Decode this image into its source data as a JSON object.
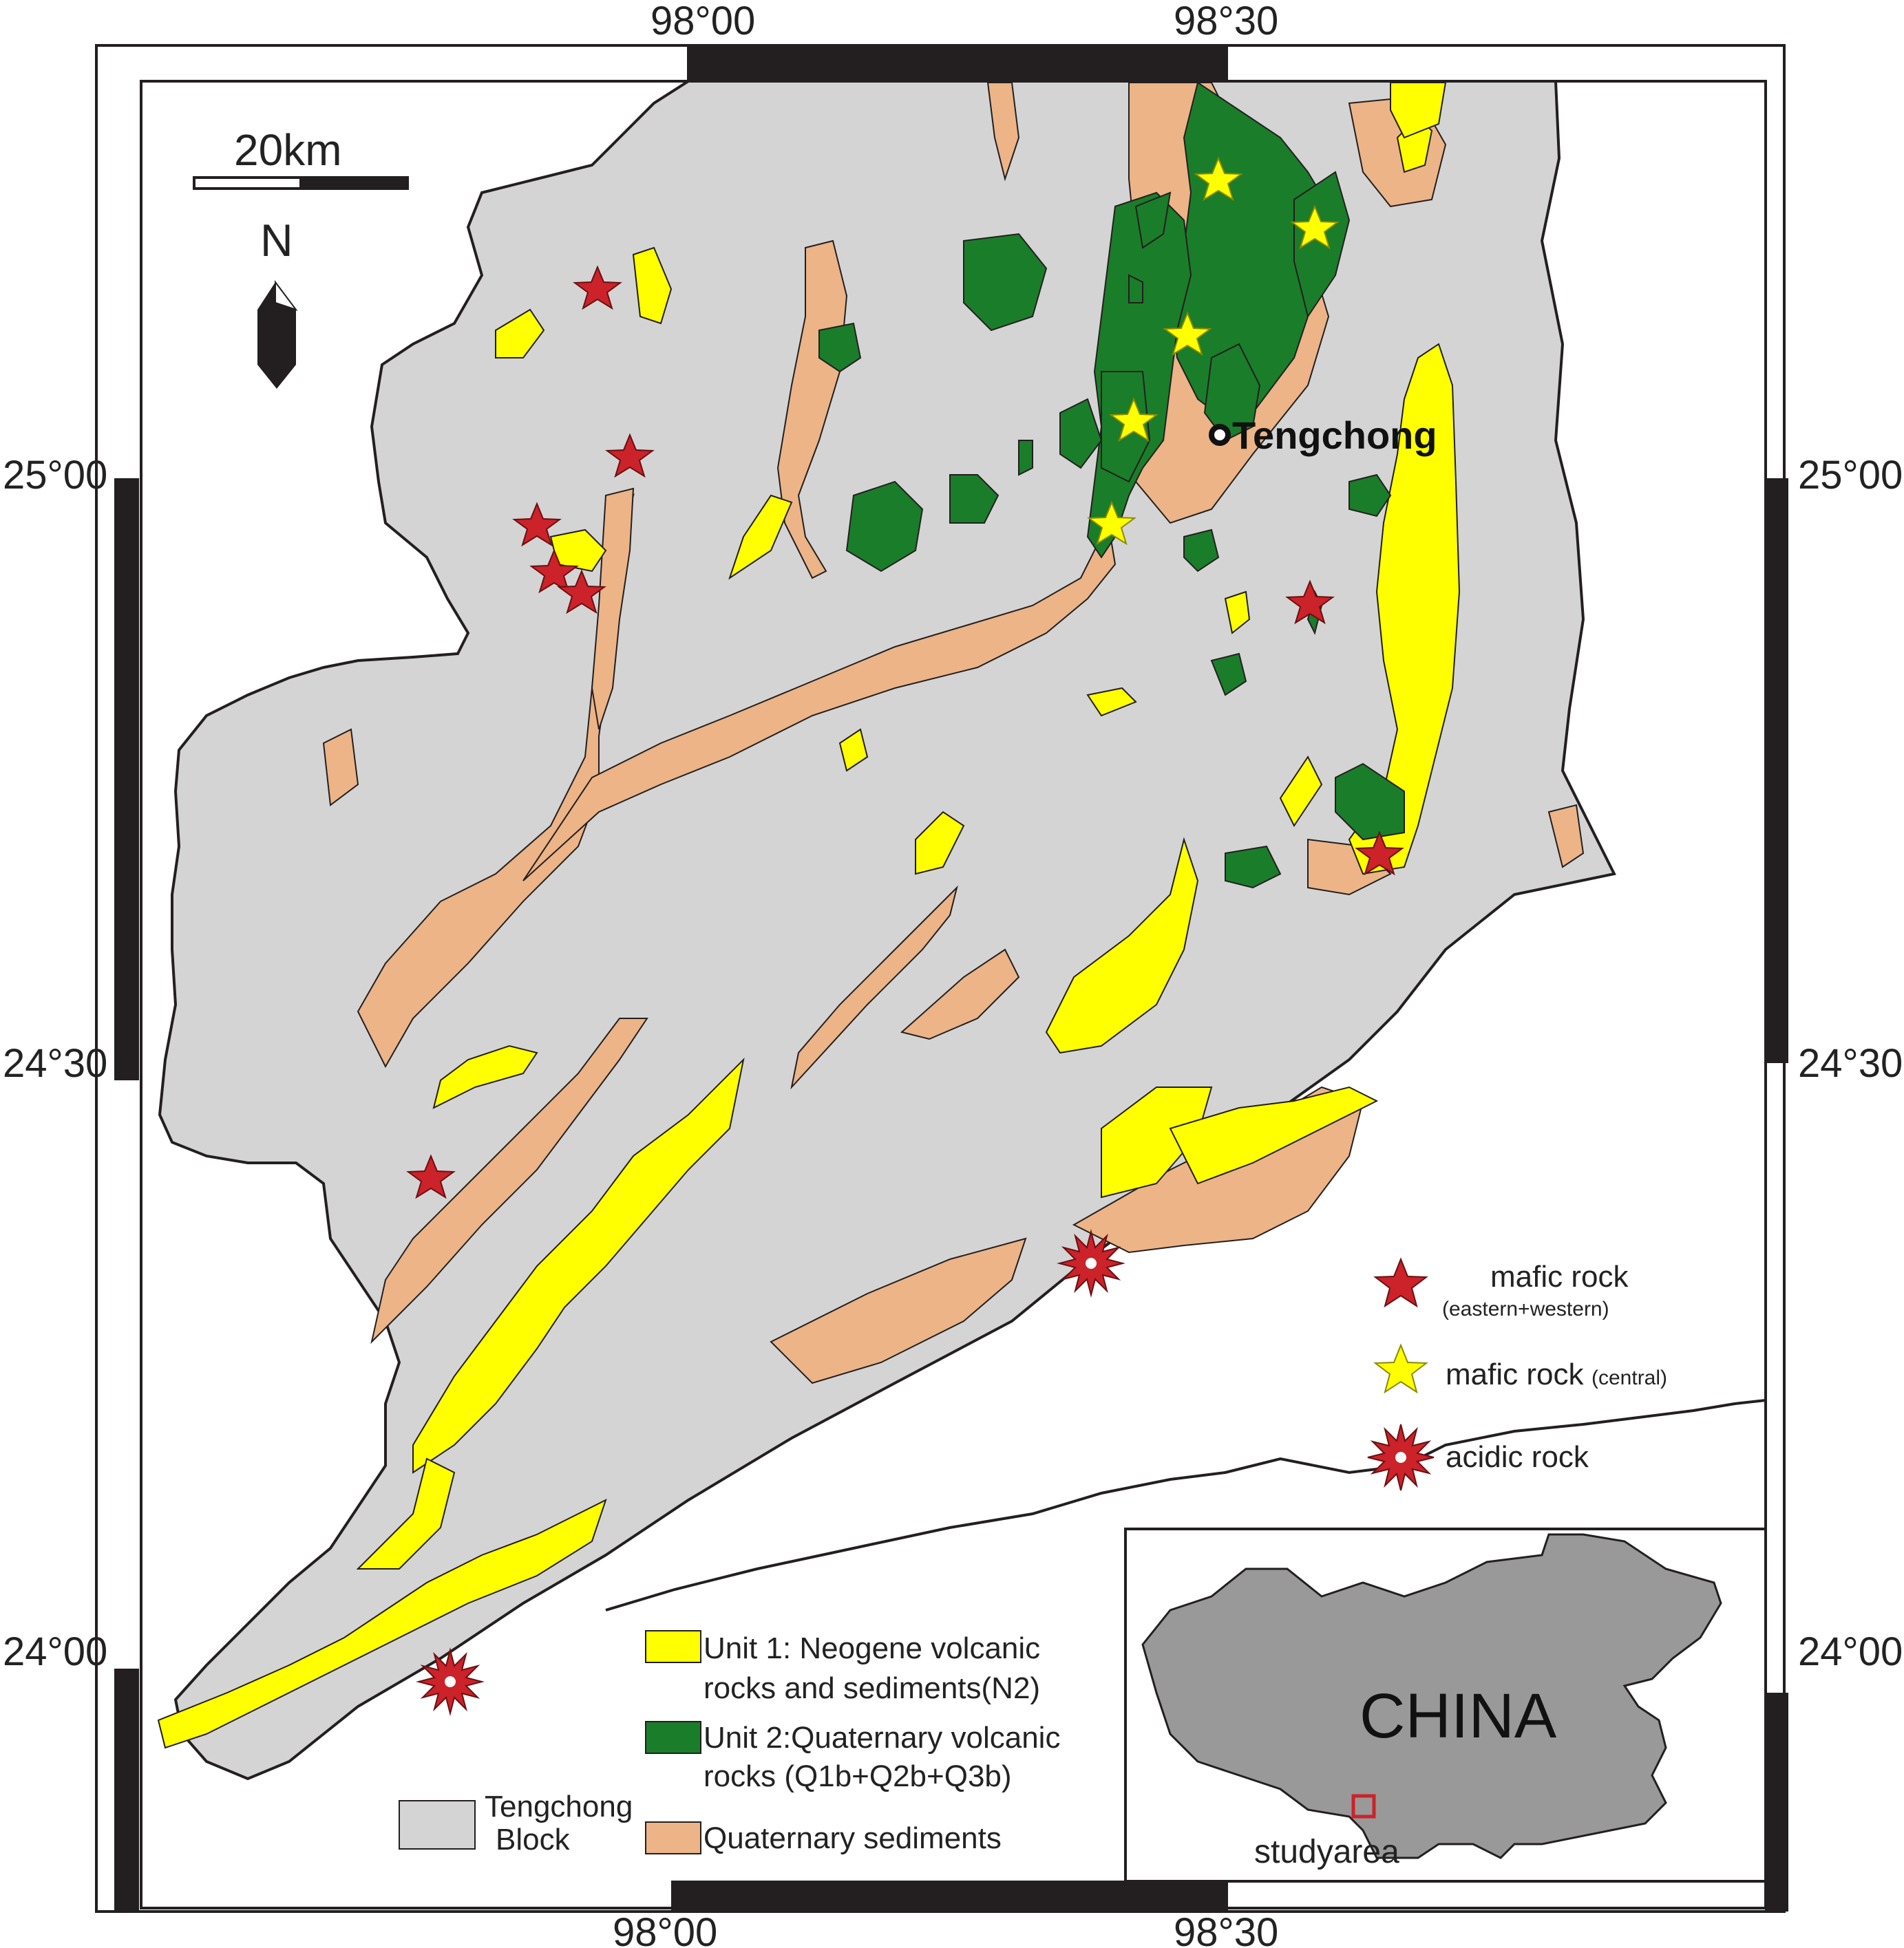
{
  "colors": {
    "block": "#d4d4d4",
    "unit1": "#ffff00",
    "unit2": "#1a7d2a",
    "quaternary": "#ecb487",
    "frame": "#231f20",
    "mafic_ew": "#cc2229",
    "mafic_c": "#ffff00",
    "china": "#999999"
  },
  "coordinates": {
    "top_98_00": "98°00",
    "top_98_30": "98°30",
    "bottom_98_00": "98°00",
    "bottom_98_30": "98°30",
    "left_25_00": "25°00",
    "left_24_30": "24°30",
    "left_24_00": "24°00",
    "right_25_00": "25°00",
    "right_24_30": "24°30",
    "right_24_00": "24°00"
  },
  "scale_bar": {
    "label": "20km"
  },
  "north_arrow": {
    "label": "N",
    "icon": "north-arrow-icon"
  },
  "city": {
    "name": "Tengchong"
  },
  "symbol_legend": {
    "mafic_ew_line1": "mafic rock",
    "mafic_ew_line2": "(eastern+western)",
    "mafic_c_main": "mafic rock",
    "mafic_c_sub": "(central)",
    "acidic": "acidic rock"
  },
  "unit_legend": {
    "unit1_line1": "Unit 1: Neogene volcanic",
    "unit1_line2": "rocks and sediments(N2)",
    "unit2_line1": "Unit 2:Quaternary volcanic",
    "unit2_line2": "rocks (Q1b+Q2b+Q3b)",
    "block_line1": "Tengchong",
    "block_line2": "Block",
    "quaternary": "Quaternary sediments"
  },
  "inset": {
    "country": "CHINA",
    "study_area": "studyarea"
  }
}
